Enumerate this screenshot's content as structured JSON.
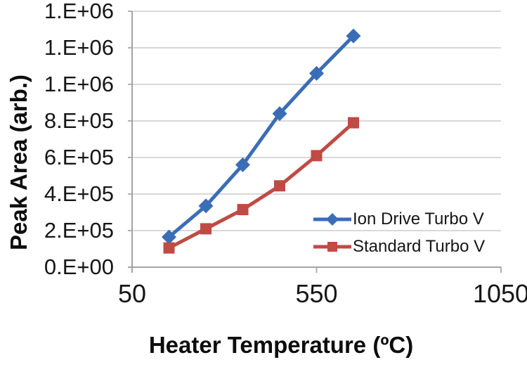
{
  "chart_data": {
    "type": "line",
    "title": "",
    "xlabel": "Heater Temperature (ºC)",
    "ylabel": "Peak Area (arb.)",
    "xlim": [
      50,
      1050
    ],
    "ylim": [
      0,
      1400000
    ],
    "x_ticks": [
      50,
      550,
      1050
    ],
    "x_tick_labels": [
      "50",
      "550",
      "1050"
    ],
    "y_tick_values": [
      0,
      200000,
      400000,
      600000,
      800000,
      1000000,
      1200000,
      1400000
    ],
    "y_tick_labels": [
      "0.E+00",
      "2.E+05",
      "4.E+05",
      "6.E+05",
      "8.E+05",
      "1.E+06",
      "1.E+06",
      "1.E+06"
    ],
    "grid": "horizontal",
    "legend_position": "inside-lower-right",
    "x": [
      150,
      250,
      350,
      450,
      550,
      650
    ],
    "series": [
      {
        "name": "Ion Drive Turbo V",
        "color": "#3a6db6",
        "marker": "diamond",
        "values": [
          165000,
          335000,
          560000,
          840000,
          1060000,
          1265000
        ]
      },
      {
        "name": "Standard Turbo V",
        "color": "#c04a44",
        "marker": "square",
        "values": [
          105000,
          210000,
          315000,
          445000,
          610000,
          790000
        ]
      }
    ]
  },
  "colors": {
    "grid": "#d2d2d2",
    "axis": "#a3a3a3",
    "text": "#161616"
  }
}
